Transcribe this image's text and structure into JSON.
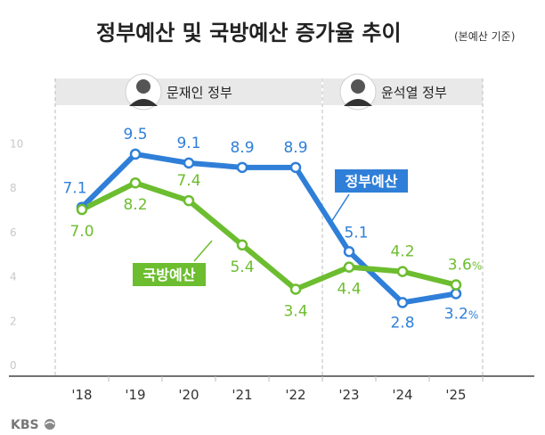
{
  "chart_data": {
    "type": "line",
    "title": "정부예산 및 국방예산 증가율 추이",
    "subtitle": "(본예산 기준)",
    "categories": [
      "'18",
      "'19",
      "'20",
      "'21",
      "'22",
      "'23",
      "'24",
      "'25"
    ],
    "ylim": [
      0,
      10
    ],
    "yticks": [
      "0",
      "2",
      "4",
      "6",
      "8",
      "10"
    ],
    "series": [
      {
        "name": "정부예산",
        "color": "#2f7fd8",
        "values": [
          7.1,
          9.5,
          9.1,
          8.9,
          8.9,
          5.1,
          2.8,
          3.2
        ],
        "labels": [
          "7.1",
          "9.5",
          "9.1",
          "8.9",
          "8.9",
          "5.1",
          "2.8",
          "3.2"
        ],
        "last_suffix": "%"
      },
      {
        "name": "국방예산",
        "color": "#6cbd2f",
        "values": [
          7.0,
          8.2,
          7.4,
          5.4,
          3.4,
          4.4,
          4.2,
          3.6
        ],
        "labels": [
          "7.0",
          "8.2",
          "7.4",
          "5.4",
          "3.4",
          "4.4",
          "4.2",
          "3.6"
        ],
        "last_suffix": "%"
      }
    ],
    "periods": [
      {
        "label": "문재인 정부",
        "from": "'18",
        "to": "'22"
      },
      {
        "label": "윤석열 정부",
        "from": "'23",
        "to": "'25"
      }
    ]
  },
  "logo": "KBS"
}
